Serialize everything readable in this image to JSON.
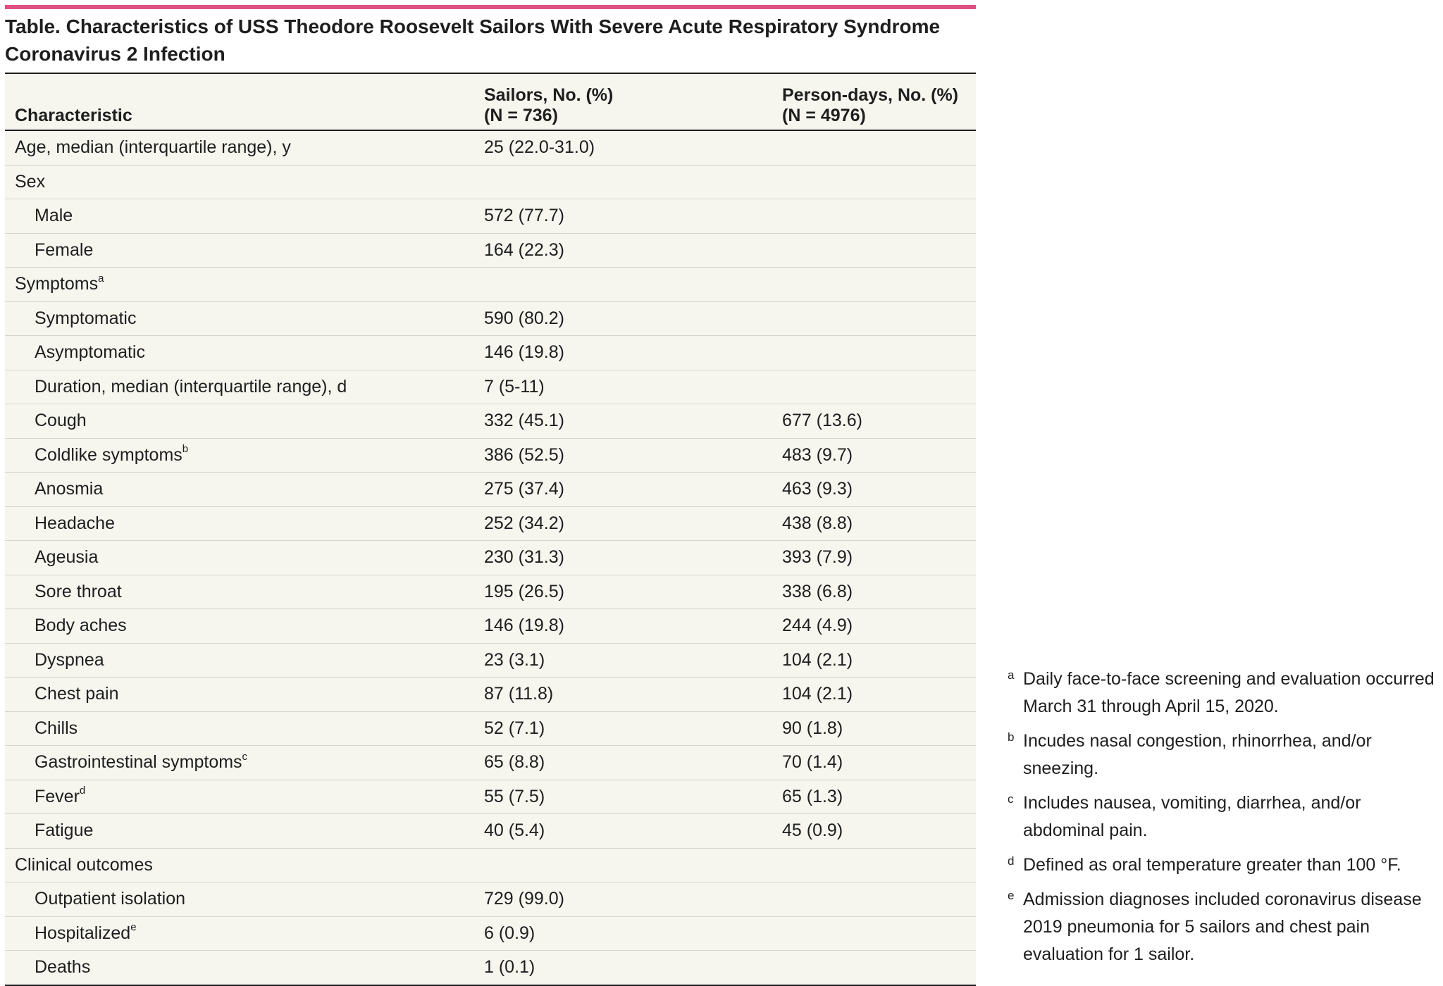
{
  "accent_color": "#e05080",
  "title": "Table. Characteristics of USS Theodore Roosevelt Sailors With Severe Acute Respiratory Syndrome Coronavirus 2 Infection",
  "header": {
    "col1": "Characteristic",
    "col2_line1": "Sailors, No. (%)",
    "col2_line2": "(N = 736)",
    "col3_line1": "Person-days, No. (%)",
    "col3_line2": "(N = 4976)"
  },
  "rows": [
    {
      "label": "Age, median (interquartile range), y",
      "sup": "",
      "sailors": "25 (22.0-31.0)",
      "days": ""
    },
    {
      "label": "Sex",
      "sup": "",
      "sailors": "",
      "days": ""
    },
    {
      "label": "Male",
      "sup": "",
      "sailors": "572 (77.7)",
      "days": ""
    },
    {
      "label": "Female",
      "sup": "",
      "sailors": "164 (22.3)",
      "days": ""
    },
    {
      "label": "Symptoms",
      "sup": "a",
      "sailors": "",
      "days": ""
    },
    {
      "label": "Symptomatic",
      "sup": "",
      "sailors": "590 (80.2)",
      "days": ""
    },
    {
      "label": "Asymptomatic",
      "sup": "",
      "sailors": "146 (19.8)",
      "days": ""
    },
    {
      "label": "Duration, median (interquartile range), d",
      "sup": "",
      "sailors": "7 (5-11)",
      "days": ""
    },
    {
      "label": "Cough",
      "sup": "",
      "sailors": "332 (45.1)",
      "days": "677 (13.6)"
    },
    {
      "label": "Coldlike symptoms",
      "sup": "b",
      "sailors": "386 (52.5)",
      "days": "483 (9.7)"
    },
    {
      "label": "Anosmia",
      "sup": "",
      "sailors": "275 (37.4)",
      "days": "463 (9.3)"
    },
    {
      "label": "Headache",
      "sup": "",
      "sailors": "252 (34.2)",
      "days": "438 (8.8)"
    },
    {
      "label": "Ageusia",
      "sup": "",
      "sailors": "230 (31.3)",
      "days": "393 (7.9)"
    },
    {
      "label": "Sore throat",
      "sup": "",
      "sailors": "195 (26.5)",
      "days": "338 (6.8)"
    },
    {
      "label": "Body aches",
      "sup": "",
      "sailors": "146 (19.8)",
      "days": "244 (4.9)"
    },
    {
      "label": "Dyspnea",
      "sup": "",
      "sailors": "23 (3.1)",
      "days": "104 (2.1)"
    },
    {
      "label": "Chest pain",
      "sup": "",
      "sailors": "87 (11.8)",
      "days": "104 (2.1)"
    },
    {
      "label": "Chills",
      "sup": "",
      "sailors": "52 (7.1)",
      "days": "90 (1.8)"
    },
    {
      "label": "Gastrointestinal symptoms",
      "sup": "c",
      "sailors": "65 (8.8)",
      "days": "70 (1.4)"
    },
    {
      "label": "Fever",
      "sup": "d",
      "sailors": "55 (7.5)",
      "days": "65 (1.3)"
    },
    {
      "label": "Fatigue",
      "sup": "",
      "sailors": "40 (5.4)",
      "days": "45 (0.9)"
    },
    {
      "label": "Clinical outcomes",
      "sup": "",
      "sailors": "",
      "days": ""
    },
    {
      "label": "Outpatient isolation",
      "sup": "",
      "sailors": "729 (99.0)",
      "days": ""
    },
    {
      "label": "Hospitalized",
      "sup": "e",
      "sailors": "6 (0.9)",
      "days": ""
    },
    {
      "label": "Deaths",
      "sup": "",
      "sailors": "1 (0.1)",
      "days": ""
    }
  ],
  "footnotes": [
    {
      "mark": "a",
      "text": "Daily face-to-face screening and evaluation occurred March 31 through April 15, 2020."
    },
    {
      "mark": "b",
      "text": "Incudes nasal congestion, rhinorrhea, and/or sneezing."
    },
    {
      "mark": "c",
      "text": "Includes nausea, vomiting, diarrhea, and/or abdominal pain."
    },
    {
      "mark": "d",
      "text": "Defined as oral temperature greater than 100 °F."
    },
    {
      "mark": "e",
      "text": "Admission diagnoses included coronavirus disease 2019 pneumonia for 5 sailors and chest pain evaluation for 1 sailor."
    }
  ]
}
